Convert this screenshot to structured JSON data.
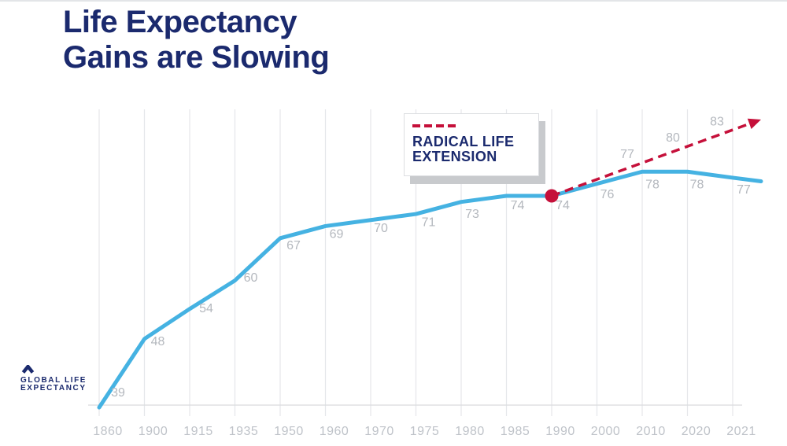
{
  "slide": {
    "title_line1": "Life Expectancy",
    "title_line2": "Gains are Slowing"
  },
  "legend_box": {
    "line1": "RADICAL LIFE",
    "line2": "EXTENSION",
    "icon": "red-dashed-line"
  },
  "logo": {
    "line1": "GLOBAL LIFE",
    "line2": "EXPECTANCY",
    "icon": "chevron-up"
  },
  "colors": {
    "navy": "#1b2a6e",
    "line_blue": "#45b2e2",
    "accent_red": "#c5103a",
    "value_label_gray": "#b4b8be",
    "axis_label_gray": "#bfc3c9",
    "gridline": "#e5e7ea",
    "baseline": "#d9dbde",
    "legend_shadow": "#c8cacd",
    "legend_border": "#dcdee1"
  },
  "chart_data": {
    "type": "line",
    "title": "Life Expectancy Gains are Slowing",
    "categories": [
      "1860",
      "1900",
      "1915",
      "1935",
      "1950",
      "1960",
      "1970",
      "1975",
      "1980",
      "1985",
      "1990",
      "2000",
      "2010",
      "2020",
      "2021"
    ],
    "series": [
      {
        "name": "Global life expectancy",
        "line_style": "solid",
        "color": "#45b2e2",
        "values": [
          39,
          48,
          54,
          60,
          67,
          69,
          70,
          71,
          73,
          74,
          74,
          76,
          78,
          78,
          77
        ]
      },
      {
        "name": "Radical life extension projection",
        "line_style": "dashed",
        "arrow_end": true,
        "color": "#c5103a",
        "start_category": "1990",
        "start_value": 74,
        "label_values": [
          77,
          80,
          83
        ]
      }
    ],
    "highlight_point": {
      "category": "1990",
      "value": 74,
      "marker": "red-dot"
    },
    "legend": {
      "label": "RADICAL LIFE EXTENSION",
      "style": "boxed-callout",
      "position": "top-center"
    },
    "grid": "vertical-only",
    "y_axis_visible": false,
    "x_axis_baseline": true,
    "y_range_implied": [
      39,
      86
    ]
  }
}
